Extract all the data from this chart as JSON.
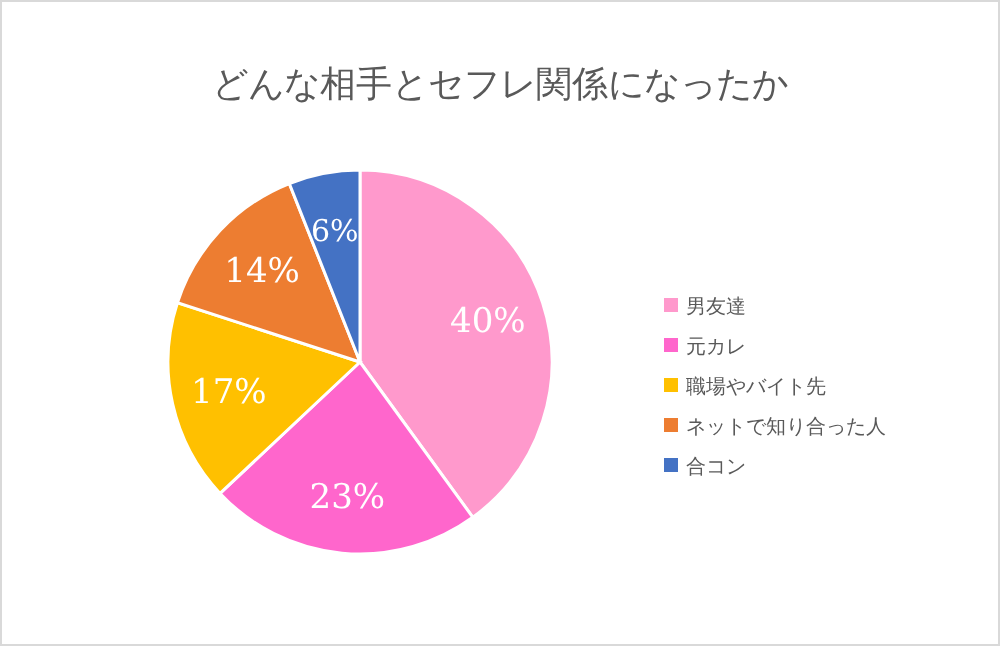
{
  "chart_data": {
    "type": "pie",
    "title": "どんな相手とセフレ関係になったか",
    "categories": [
      "男友達",
      "元カレ",
      "職場やバイト先",
      "ネットで知り合った人",
      "合コン"
    ],
    "values": [
      40,
      23,
      17,
      14,
      6
    ],
    "colors": [
      "#ff99cc",
      "#ff66cc",
      "#ffc000",
      "#ed7d31",
      "#4472c4"
    ],
    "value_labels": [
      "40%",
      "23%",
      "17%",
      "14%",
      "6%"
    ],
    "legend": "right"
  }
}
